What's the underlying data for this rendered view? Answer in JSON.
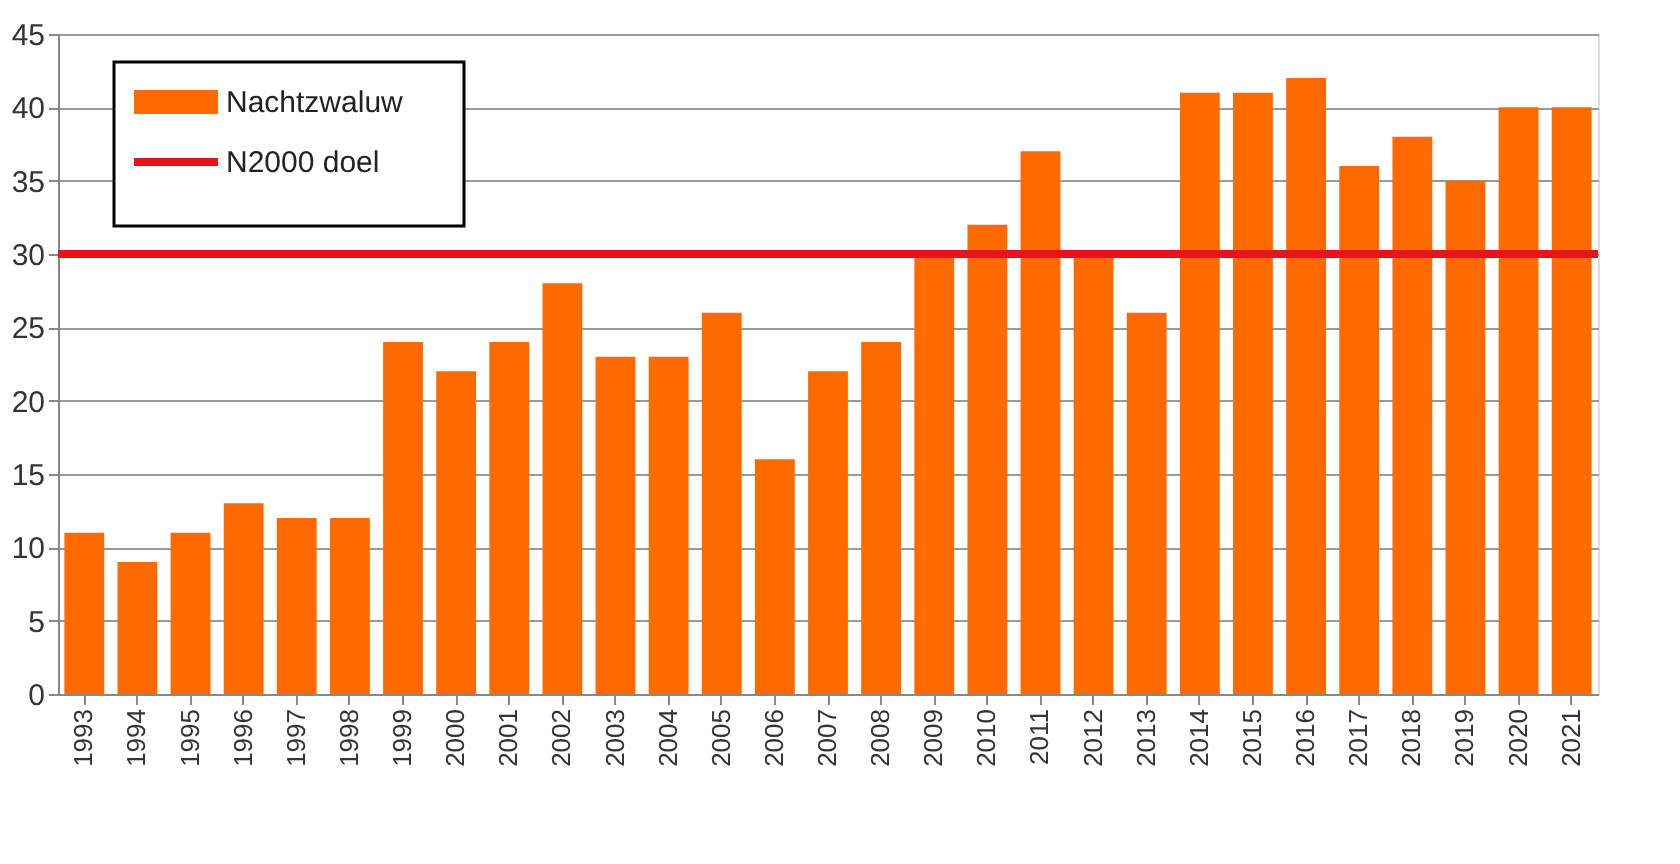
{
  "chart_data": {
    "type": "bar",
    "categories": [
      "1993",
      "1994",
      "1995",
      "1996",
      "1997",
      "1998",
      "1999",
      "2000",
      "2001",
      "2002",
      "2003",
      "2004",
      "2005",
      "2006",
      "2007",
      "2008",
      "2009",
      "2010",
      "2011",
      "2012",
      "2013",
      "2014",
      "2015",
      "2016",
      "2017",
      "2018",
      "2019",
      "2020",
      "2021"
    ],
    "series": [
      {
        "name": "Nachtzwaluw",
        "color": "#ff6a00",
        "values": [
          11,
          9,
          11,
          13,
          12,
          12,
          24,
          22,
          24,
          28,
          23,
          23,
          26,
          16,
          22,
          24,
          30,
          32,
          37,
          30,
          26,
          41,
          41,
          42,
          36,
          38,
          35,
          40,
          40
        ]
      }
    ],
    "ref_lines": [
      {
        "axis": "y",
        "value": 30,
        "label": "N2000 doel",
        "color": "#e8141b",
        "line_style": "solid"
      }
    ],
    "ylim": [
      0,
      45
    ],
    "yticks": [
      0,
      5,
      10,
      15,
      20,
      25,
      30,
      35,
      40,
      45
    ],
    "grid": "y",
    "legend": "top left"
  }
}
